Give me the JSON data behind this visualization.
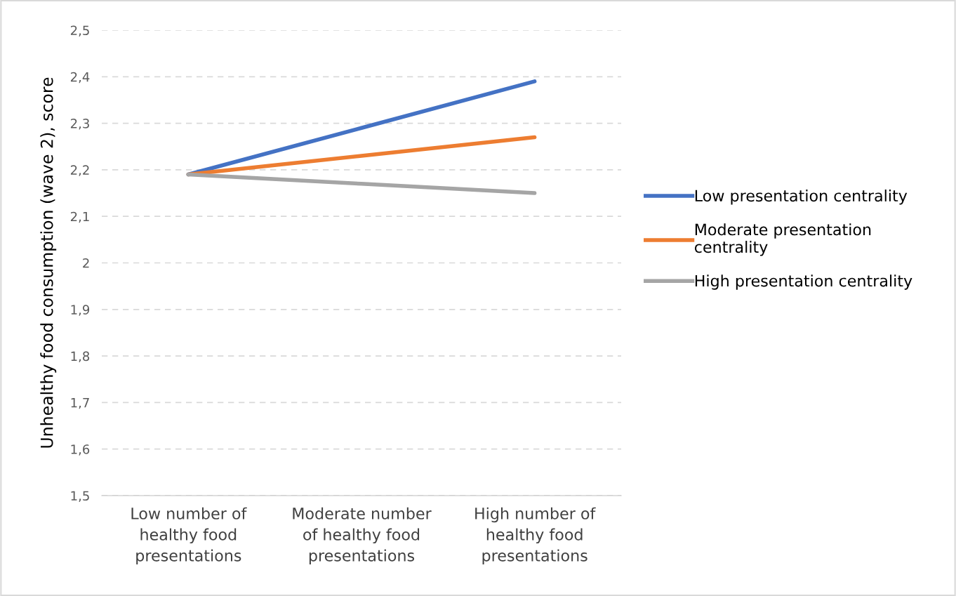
{
  "chart_data": {
    "type": "line",
    "ylabel": "Unhealthy food consumption (wave 2), score",
    "categories": [
      "Low number of\nhealthy food\npresentations",
      "Moderate number\nof healthy food\npresentations",
      "High number of\nhealthy food\npresentations"
    ],
    "series": [
      {
        "name": "Low presentation centrality",
        "color": "#4472c4",
        "values": [
          2.19,
          2.29,
          2.39
        ]
      },
      {
        "name": "Moderate presentation\ncentrality",
        "color": "#ed7d31",
        "values": [
          2.19,
          2.23,
          2.27
        ]
      },
      {
        "name": "High presentation centrality",
        "color": "#a5a5a5",
        "values": [
          2.19,
          2.17,
          2.15
        ]
      }
    ],
    "ylim": [
      1.5,
      2.5
    ],
    "yticks": [
      {
        "value": 1.5,
        "label": "1,5"
      },
      {
        "value": 1.6,
        "label": "1,6"
      },
      {
        "value": 1.7,
        "label": "1,7"
      },
      {
        "value": 1.8,
        "label": "1,8"
      },
      {
        "value": 1.9,
        "label": "1,9"
      },
      {
        "value": 2,
        "label": "2"
      },
      {
        "value": 2.1,
        "label": "2,1"
      },
      {
        "value": 2.2,
        "label": "2,2"
      },
      {
        "value": 2.3,
        "label": "2,3"
      },
      {
        "value": 2.4,
        "label": "2,4"
      },
      {
        "value": 2.5,
        "label": "2,5"
      }
    ],
    "grid": "y",
    "legend": "right",
    "marker": "none",
    "line_style": "solid"
  }
}
